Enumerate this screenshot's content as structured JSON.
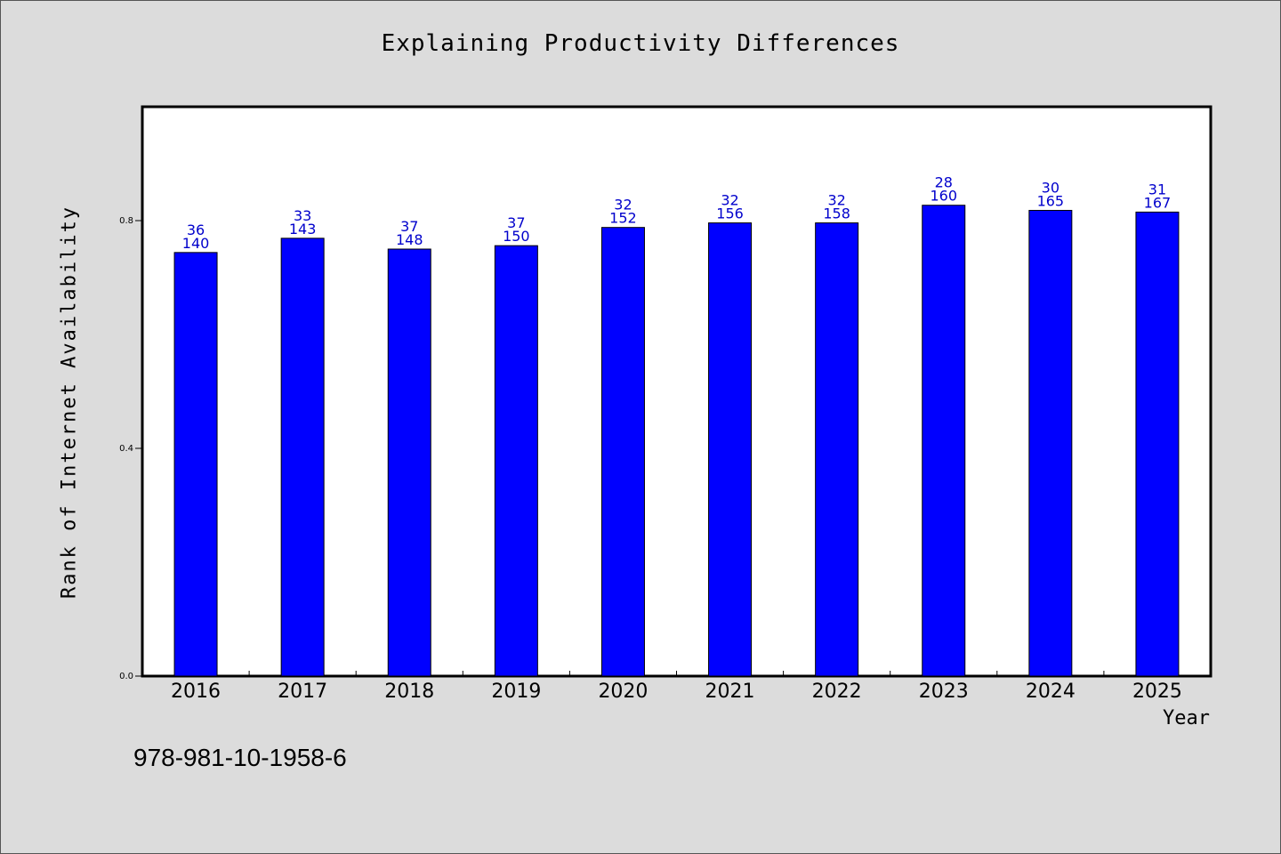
{
  "chart_data": {
    "type": "bar",
    "title": "Explaining Productivity Differences",
    "xlabel": "Year",
    "ylabel": "Rank of Internet Availability",
    "ylim": [
      0,
      1.0
    ],
    "yticks": [
      0.0,
      0.4,
      0.8
    ],
    "ytick_labels": [
      "0.0",
      "0.4",
      "0.8"
    ],
    "grid": false,
    "bar_color": "#0000ff",
    "label_color": "#0000cc",
    "categories": [
      "2016",
      "2017",
      "2018",
      "2019",
      "2020",
      "2021",
      "2022",
      "2023",
      "2024",
      "2025"
    ],
    "values": [
      0.744,
      0.769,
      0.75,
      0.756,
      0.788,
      0.796,
      0.796,
      0.827,
      0.818,
      0.815
    ],
    "labels_top": [
      "36",
      "33",
      "37",
      "37",
      "32",
      "32",
      "32",
      "28",
      "30",
      "31"
    ],
    "labels_bottom": [
      "140",
      "143",
      "148",
      "150",
      "152",
      "156",
      "158",
      "160",
      "165",
      "167"
    ]
  },
  "footnote": "978-981-10-1958-6"
}
